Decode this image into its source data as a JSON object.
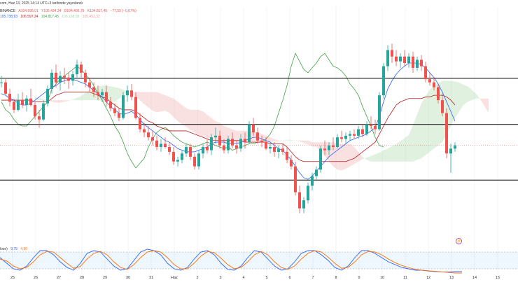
{
  "header": {
    "line1": "com, Haz 13, 2025 14:14 UTC+3 tarihinde yayınlandı",
    "exchange": "BINANCE",
    "open": "A104.895,01",
    "high": "Y105.434,34",
    "low": "D104.405,79",
    "close": "K104.817,45",
    "change": "−77,55 (−0,07%)",
    "ichimoku": [
      "105.738,93",
      "106.597,24",
      "104.817,45",
      "106.168,09",
      "105.451,32"
    ]
  },
  "oscillator": {
    "label": "lose)",
    "k": "9,75",
    "d": "4,90"
  },
  "colors": {
    "up": "#26a69a",
    "down": "#ef5350",
    "tenkan": "#2962ff",
    "kijun": "#b71c1c",
    "chikou": "#43a047",
    "spanA": "#a5d6a7",
    "spanB": "#ef9a9a",
    "stochK": "#2962ff",
    "stochD": "#ff6d00"
  },
  "icons": {
    "corner": "bolt-icon"
  },
  "xaxis": {
    "labels": [
      "25",
      "26",
      "27",
      "28",
      "29",
      "30",
      "31",
      "Haz",
      "2",
      "3",
      "4",
      "5",
      "6",
      "7",
      "8",
      "9",
      "10",
      "11",
      "12",
      "13",
      "14",
      "15"
    ]
  },
  "chart_data": [
    {
      "type": "candlestick",
      "title": "BTCUSDT · 4h · BINANCE",
      "ylim": [
        99500,
        112500
      ],
      "horizontal_levels": [
        108950,
        106100,
        102650
      ],
      "candles": [
        [
          108700,
          109100,
          108400,
          108700
        ],
        [
          108700,
          108900,
          107900,
          108000
        ],
        [
          108000,
          108300,
          107200,
          107500
        ],
        [
          107500,
          107700,
          106800,
          107000
        ],
        [
          107000,
          108000,
          106900,
          107600
        ],
        [
          107600,
          108100,
          107100,
          107300
        ],
        [
          107300,
          107900,
          106900,
          107700
        ],
        [
          107700,
          108300,
          107200,
          107300
        ],
        [
          107300,
          107500,
          106400,
          106600
        ],
        [
          106600,
          107000,
          105900,
          106400
        ],
        [
          106400,
          107600,
          106300,
          107400
        ],
        [
          107400,
          108500,
          107200,
          108300
        ],
        [
          108300,
          109500,
          108000,
          109300
        ],
        [
          109300,
          109800,
          108400,
          108700
        ],
        [
          108700,
          109400,
          108200,
          109100
        ],
        [
          109100,
          109600,
          108600,
          109000
        ],
        [
          109000,
          109300,
          108300,
          108800
        ],
        [
          108800,
          109400,
          108500,
          109200
        ],
        [
          109200,
          110100,
          109000,
          109800
        ],
        [
          109800,
          110000,
          109000,
          109300
        ],
        [
          109300,
          109500,
          108400,
          108700
        ],
        [
          108700,
          109000,
          108100,
          108400
        ],
        [
          108400,
          108700,
          107800,
          108100
        ],
        [
          108100,
          108500,
          107600,
          107900
        ],
        [
          107900,
          108300,
          107500,
          108100
        ],
        [
          108100,
          108500,
          107200,
          107500
        ],
        [
          107500,
          107800,
          106900,
          107100
        ],
        [
          107100,
          107400,
          106600,
          106800
        ],
        [
          106800,
          107100,
          106300,
          106500
        ],
        [
          106500,
          108100,
          106400,
          107900
        ],
        [
          107900,
          108500,
          107500,
          108200
        ],
        [
          108200,
          108600,
          107600,
          107800
        ],
        [
          107800,
          108100,
          106400,
          106500
        ],
        [
          106500,
          106800,
          105600,
          105800
        ],
        [
          105800,
          106200,
          105300,
          105600
        ],
        [
          105600,
          106000,
          105100,
          105300
        ],
        [
          105300,
          105700,
          104800,
          105100
        ],
        [
          105100,
          105400,
          104500,
          104700
        ],
        [
          104700,
          105200,
          104400,
          104900
        ],
        [
          104900,
          105300,
          104600,
          104700
        ],
        [
          104700,
          105000,
          104200,
          104400
        ],
        [
          104400,
          104700,
          103600,
          103800
        ],
        [
          103800,
          104100,
          103500,
          103900
        ],
        [
          103900,
          104500,
          103700,
          104300
        ],
        [
          104300,
          104900,
          104100,
          104700
        ],
        [
          104700,
          104900,
          103900,
          104100
        ],
        [
          104100,
          104300,
          103300,
          103500
        ],
        [
          103500,
          104500,
          103300,
          104300
        ],
        [
          104300,
          104900,
          104000,
          104700
        ],
        [
          104700,
          105200,
          104300,
          104500
        ],
        [
          104500,
          105500,
          104200,
          105300
        ],
        [
          105300,
          105900,
          104900,
          105400
        ],
        [
          105400,
          105700,
          104600,
          104800
        ],
        [
          104800,
          105200,
          104300,
          104500
        ],
        [
          104500,
          105400,
          104300,
          105200
        ],
        [
          105200,
          105600,
          104600,
          104800
        ],
        [
          104800,
          105100,
          104300,
          104600
        ],
        [
          104600,
          105500,
          104400,
          105200
        ],
        [
          105200,
          105600,
          104600,
          105000
        ],
        [
          105000,
          106300,
          104900,
          106100
        ],
        [
          106100,
          106500,
          105400,
          105600
        ],
        [
          105600,
          105900,
          104900,
          105100
        ],
        [
          105100,
          105400,
          104700,
          105000
        ],
        [
          105000,
          105300,
          104500,
          104600
        ],
        [
          104600,
          105000,
          104300,
          104700
        ],
        [
          104700,
          105000,
          104100,
          104400
        ],
        [
          104400,
          104800,
          104000,
          104600
        ],
        [
          104600,
          104900,
          104200,
          104400
        ],
        [
          104400,
          104700,
          103700,
          103900
        ],
        [
          103900,
          104200,
          103300,
          103500
        ],
        [
          103500,
          103800,
          101700,
          101900
        ],
        [
          101900,
          102300,
          100600,
          100900
        ],
        [
          100900,
          101600,
          100600,
          101400
        ],
        [
          101400,
          102500,
          101200,
          102300
        ],
        [
          102300,
          103100,
          102000,
          102900
        ],
        [
          102900,
          103500,
          102600,
          103300
        ],
        [
          103300,
          104800,
          103100,
          104600
        ],
        [
          104600,
          105100,
          104200,
          104500
        ],
        [
          104500,
          105000,
          104200,
          104800
        ],
        [
          104800,
          105300,
          104500,
          104700
        ],
        [
          104700,
          105500,
          104600,
          105300
        ],
        [
          105300,
          105700,
          105000,
          105200
        ],
        [
          105200,
          105600,
          104900,
          105400
        ],
        [
          105400,
          105700,
          105100,
          105500
        ],
        [
          105500,
          105800,
          105200,
          105400
        ],
        [
          105400,
          106000,
          105200,
          105800
        ],
        [
          105800,
          106100,
          105300,
          105500
        ],
        [
          105500,
          106300,
          105400,
          106100
        ],
        [
          106100,
          106600,
          105800,
          106000
        ],
        [
          106000,
          106400,
          105500,
          105800
        ],
        [
          105800,
          108100,
          105700,
          107900
        ],
        [
          107900,
          109900,
          107700,
          109700
        ],
        [
          109700,
          111000,
          109400,
          110700
        ],
        [
          110700,
          111100,
          109900,
          110300
        ],
        [
          110300,
          110700,
          109700,
          110000
        ],
        [
          110000,
          110500,
          109600,
          110300
        ],
        [
          110300,
          110700,
          109700,
          109900
        ],
        [
          109900,
          110500,
          109600,
          110300
        ],
        [
          110300,
          110600,
          109300,
          109600
        ],
        [
          109600,
          110300,
          109400,
          110100
        ],
        [
          110100,
          110400,
          109400,
          109700
        ],
        [
          109700,
          110000,
          108700,
          108900
        ],
        [
          108900,
          109300,
          108500,
          108700
        ],
        [
          108700,
          109000,
          108200,
          108400
        ],
        [
          108400,
          108600,
          107400,
          107600
        ],
        [
          107600,
          108000,
          106600,
          106800
        ],
        [
          106800,
          107100,
          104000,
          104300
        ],
        [
          104300,
          104900,
          103100,
          104600
        ],
        [
          104600,
          105000,
          104400,
          104800
        ]
      ],
      "tenkan": [
        108000,
        107900,
        107700,
        107600,
        107400,
        107300,
        107300,
        107400,
        107600,
        107800,
        108000,
        108200,
        108400,
        108500,
        108700,
        108800,
        108900,
        108900,
        108800,
        108700,
        108600,
        108400,
        108200,
        108000,
        107800,
        107500,
        107200,
        107000,
        106800,
        106700,
        106800,
        106900,
        106700,
        106400,
        106100,
        105900,
        105700,
        105500,
        105300,
        105100,
        105000,
        104800,
        104600,
        104500,
        104400,
        104400,
        104400,
        104500,
        104600,
        104700,
        104900,
        105000,
        105000,
        105000,
        104900,
        104900,
        104900,
        105000,
        105100,
        105200,
        105300,
        105300,
        105200,
        105100,
        105000,
        104800,
        104600,
        104500,
        104200,
        103900,
        103500,
        103100,
        102800,
        102700,
        102900,
        103200,
        103500,
        103800,
        104100,
        104300,
        104500,
        104700,
        104900,
        105100,
        105200,
        105300,
        105400,
        105500,
        105700,
        105900,
        106600,
        107500,
        108300,
        108800,
        109200,
        109500,
        109700,
        109900,
        109900,
        109900,
        109800,
        109600,
        109300,
        109000,
        108600,
        108100,
        107500,
        106900,
        106300
      ],
      "kijun": [
        107600,
        107600,
        107600,
        107600,
        107600,
        107600,
        107600,
        107600,
        107500,
        107500,
        107500,
        107500,
        107700,
        107900,
        108000,
        108100,
        108100,
        108100,
        108100,
        108100,
        108100,
        108100,
        108000,
        107900,
        107800,
        107700,
        107500,
        107300,
        107100,
        107000,
        107000,
        107000,
        106900,
        106700,
        106500,
        106300,
        106200,
        106000,
        105900,
        105800,
        105700,
        105700,
        105700,
        105700,
        105700,
        105600,
        105500,
        105400,
        105300,
        105200,
        105100,
        105100,
        105100,
        105100,
        105100,
        105100,
        105100,
        105100,
        105000,
        105000,
        105000,
        105000,
        105000,
        105000,
        104900,
        104900,
        104900,
        104900,
        104700,
        104400,
        104100,
        103900,
        103800,
        103800,
        103800,
        103800,
        103800,
        103800,
        103800,
        103800,
        103800,
        103800,
        103800,
        103900,
        104000,
        104200,
        104400,
        104600,
        104800,
        105000,
        105500,
        106000,
        106500,
        106900,
        107300,
        107500,
        107600,
        107700,
        107700,
        107700,
        107700,
        107800,
        107800,
        107900,
        107900,
        107900,
        107800,
        107600,
        107300
      ],
      "chikou": [
        107500,
        107000,
        106800,
        106400,
        106100,
        106000,
        106000,
        106300,
        106600,
        106900,
        107200,
        107500,
        108300,
        108600,
        108900,
        109100,
        109300,
        109500,
        109700,
        109500,
        109200,
        108900,
        108500,
        108000,
        107600,
        107100,
        106600,
        106000,
        105600,
        105000,
        104300,
        103800,
        103400,
        103700,
        104000,
        104700,
        105200,
        105600,
        105800,
        105900,
        105700,
        105400,
        105200,
        105000,
        104900,
        104800,
        104700,
        104800,
        104900,
        105000,
        104900,
        104800,
        104700,
        104600,
        104700,
        104500,
        104600,
        104700,
        104800,
        104900,
        104900,
        105000,
        105000,
        105200,
        105500,
        106000,
        106800,
        107600,
        108500,
        109700,
        110500,
        110000,
        109500,
        109300,
        109600,
        109900,
        110300,
        110500,
        110100,
        109700,
        109600,
        109400,
        109100,
        108600,
        108300,
        107900,
        107200,
        106600,
        106000,
        105300,
        104800,
        104700
      ]
    },
    {
      "type": "line",
      "title": "Stochastic",
      "ylim": [
        0,
        100
      ],
      "bands": [
        80,
        20
      ],
      "series": [
        {
          "name": "K",
          "values": [
            60,
            40,
            20,
            15,
            30,
            60,
            85,
            85,
            70,
            45,
            25,
            15,
            40,
            75,
            85,
            80,
            55,
            30,
            15,
            20,
            50,
            80,
            90,
            85,
            70,
            40,
            20,
            15,
            25,
            55,
            80,
            85,
            70,
            40,
            18,
            15,
            30,
            60,
            85,
            80,
            55,
            30,
            15,
            20,
            45,
            75,
            85,
            85,
            70,
            50,
            25,
            15,
            30,
            60,
            85,
            85,
            75,
            60,
            45,
            35,
            25,
            20,
            15,
            15,
            12,
            10,
            9,
            9,
            10,
            10
          ]
        },
        {
          "name": "D",
          "values": [
            55,
            48,
            30,
            20,
            25,
            45,
            70,
            82,
            80,
            60,
            40,
            22,
            28,
            55,
            75,
            82,
            70,
            45,
            25,
            18,
            35,
            60,
            80,
            85,
            80,
            60,
            35,
            20,
            20,
            40,
            65,
            82,
            78,
            58,
            35,
            20,
            25,
            45,
            70,
            82,
            70,
            45,
            25,
            18,
            30,
            55,
            75,
            85,
            80,
            62,
            40,
            22,
            25,
            45,
            70,
            82,
            80,
            70,
            55,
            42,
            32,
            25,
            18,
            15,
            13,
            11,
            9,
            7,
            5,
            5
          ]
        }
      ]
    }
  ]
}
